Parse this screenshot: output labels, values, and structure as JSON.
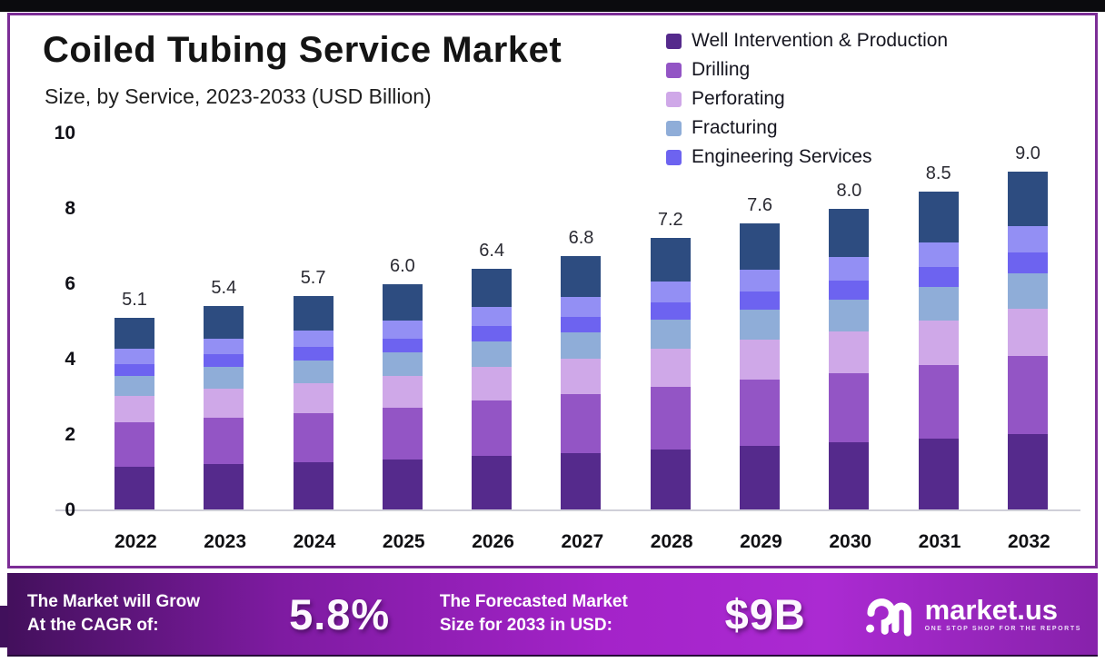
{
  "chart_data": {
    "type": "bar",
    "stacked": true,
    "title": "Coiled Tubing Service Market",
    "subtitle": "Size, by Service, 2023-2033 (USD Billion)",
    "categories": [
      "2022",
      "2023",
      "2024",
      "2025",
      "2026",
      "2027",
      "2028",
      "2029",
      "2030",
      "2031",
      "2032"
    ],
    "totals": [
      5.1,
      5.4,
      5.7,
      6.0,
      6.4,
      6.8,
      7.2,
      7.6,
      8.0,
      8.5,
      9.0
    ],
    "series": [
      {
        "name": "Well Intervention & Production",
        "color": "#552a8c",
        "values": [
          1.15,
          1.22,
          1.28,
          1.35,
          1.44,
          1.53,
          1.62,
          1.71,
          1.8,
          1.91,
          2.03
        ]
      },
      {
        "name": "Drilling",
        "color": "#9355c5",
        "values": [
          1.17,
          1.24,
          1.31,
          1.38,
          1.47,
          1.56,
          1.66,
          1.75,
          1.84,
          1.96,
          2.07
        ]
      },
      {
        "name": "Perforating",
        "color": "#cfa8e8",
        "values": [
          0.71,
          0.76,
          0.8,
          0.84,
          0.9,
          0.95,
          1.01,
          1.06,
          1.12,
          1.19,
          1.26
        ]
      },
      {
        "name": "Fracturing",
        "color": "#8fadd8",
        "values": [
          0.54,
          0.57,
          0.6,
          0.63,
          0.67,
          0.71,
          0.76,
          0.8,
          0.84,
          0.89,
          0.95
        ]
      },
      {
        "name": "Engineering Services",
        "color": "#6d63f0",
        "values": [
          0.32,
          0.33,
          0.35,
          0.37,
          0.4,
          0.42,
          0.45,
          0.47,
          0.5,
          0.53,
          0.56
        ]
      },
      {
        "name": "",
        "color": "#938ff4",
        "values": [
          0.4,
          0.42,
          0.44,
          0.47,
          0.5,
          0.53,
          0.56,
          0.59,
          0.62,
          0.66,
          0.7
        ]
      },
      {
        "name": "",
        "color": "#2d4c80",
        "values": [
          0.82,
          0.86,
          0.91,
          0.96,
          1.02,
          1.09,
          1.15,
          1.22,
          1.28,
          1.36,
          1.44
        ]
      }
    ],
    "legend": [
      "Well Intervention & Production",
      "Drilling",
      "Perforating",
      "Fracturing",
      "Engineering Services"
    ],
    "legend_position": "top-right",
    "y_ticks": [
      0,
      2,
      4,
      6,
      8,
      10
    ],
    "ylim": [
      0,
      10
    ],
    "grid": false,
    "xlabel": "",
    "ylabel": ""
  },
  "banner": {
    "grow_line1": "The Market will Grow",
    "grow_line2": "At the CAGR of:",
    "cagr_value": "5.8%",
    "forecast_line1": "The Forecasted Market",
    "forecast_line2": "Size for 2033 in USD:",
    "forecast_value": "$9B",
    "logo_text": "market.us",
    "logo_tagline": "ONE STOP SHOP FOR THE REPORTS"
  },
  "colors": {
    "card_border": "#7c2d96",
    "banner_gradient_start": "#43105c",
    "banner_gradient_mid": "#a423c9",
    "banner_gradient_end": "#8722ab",
    "axis_line": "#cfcfd8",
    "top_strip": "#0b0b0e"
  }
}
